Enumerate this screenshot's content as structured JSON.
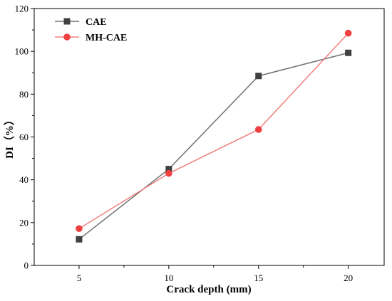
{
  "chart_data": {
    "type": "line",
    "xlabel": "Crack depth (mm)",
    "ylabel": "DI（%）",
    "x": [
      5,
      10,
      15,
      20
    ],
    "xticks": [
      5,
      10,
      15,
      20
    ],
    "xlim": [
      2.5,
      22
    ],
    "yticks": [
      0,
      20,
      40,
      60,
      80,
      100,
      120
    ],
    "ylim": [
      0,
      120
    ],
    "grid": false,
    "legend_position": "top-left",
    "series": [
      {
        "name": "CAE",
        "values": [
          12.2,
          45.0,
          88.5,
          99.3
        ],
        "color": "#707070",
        "marker": "square",
        "marker_color": "#404040"
      },
      {
        "name": "MH-CAE",
        "values": [
          17.2,
          43.0,
          63.5,
          108.5
        ],
        "color": "#f08080",
        "marker": "circle",
        "marker_color": "#f04040"
      }
    ]
  }
}
